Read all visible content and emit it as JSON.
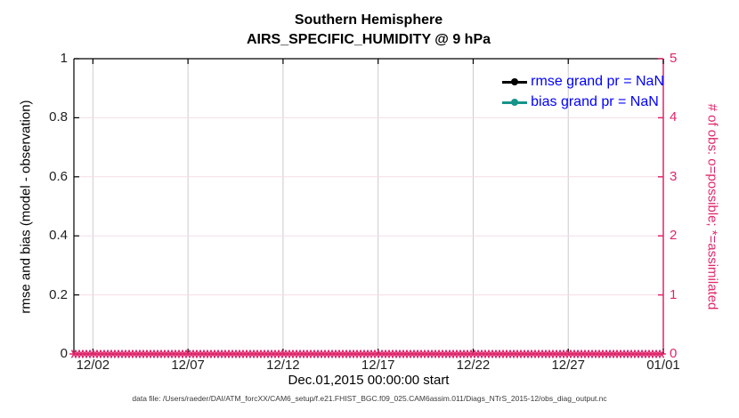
{
  "title": {
    "line1": "Southern Hemisphere",
    "line2": "AIRS_SPECIFIC_HUMIDITY @ 9 hPa"
  },
  "xaxis": {
    "label": "Dec.01,2015 00:00:00 start",
    "tick_labels": [
      "12/02",
      "12/07",
      "12/12",
      "12/17",
      "12/22",
      "12/27",
      "01/01"
    ],
    "tick_days": [
      1,
      6,
      11,
      16,
      21,
      26,
      31
    ],
    "range_days": [
      0,
      31
    ]
  },
  "yaxis_left": {
    "label": "rmse and bias (model - observation)",
    "tick_labels": [
      "0",
      "0.2",
      "0.4",
      "0.6",
      "0.8",
      "1"
    ],
    "tick_values": [
      0,
      0.2,
      0.4,
      0.6,
      0.8,
      1
    ],
    "range": [
      0,
      1
    ],
    "color": "#000000"
  },
  "yaxis_right": {
    "label": "# of obs: o=possible; *=assimilated",
    "tick_labels": [
      "0",
      "1",
      "2",
      "3",
      "4",
      "5"
    ],
    "tick_values": [
      0,
      1,
      2,
      3,
      4,
      5
    ],
    "range": [
      0,
      5
    ],
    "color": "#e0256b"
  },
  "legend": {
    "text_color": "#0000ff",
    "items": [
      {
        "label": "rmse grand pr = NaN",
        "color": "#000000",
        "marker": "filled-circle"
      },
      {
        "label": "bias grand pr = NaN",
        "color": "#16948a",
        "marker": "filled-circle"
      }
    ]
  },
  "footer": "data file: /Users/raeder/DAI/ATM_forcXX/CAM6_setup/f.e21.FHIST_BGC.f09_025.CAM6assim.011/Diags_NTrS_2015-12/obs_diag_output.nc",
  "colors": {
    "obs_pink": "#e0256b",
    "grid_vertical": "#cccccc",
    "grid_horizontal": "#f6dbe7",
    "axis_black": "#000000",
    "tick_text": "#1f1f1f"
  },
  "chart_data": {
    "type": "line",
    "title": "Southern Hemisphere",
    "subtitle": "AIRS_SPECIFIC_HUMIDITY @ 9 hPa",
    "xlabel": "Dec.01,2015 00:00:00 start",
    "x_tick_labels": [
      "12/02",
      "12/07",
      "12/12",
      "12/17",
      "12/22",
      "12/27",
      "01/01"
    ],
    "x_range_days_from_dec01": [
      0,
      31
    ],
    "ylabel_left": "rmse and bias (model - observation)",
    "ylim_left": [
      0,
      1
    ],
    "ylabel_right": "# of obs: o=possible; *=assimilated",
    "ylim_right": [
      0,
      5
    ],
    "grid": true,
    "legend_position": "top-right-inside",
    "series": [
      {
        "name": "rmse grand pr = NaN",
        "axis": "left",
        "color": "#000000",
        "marker": "filled-circle",
        "values": "NaN (nothing plotted)"
      },
      {
        "name": "bias grand pr = NaN",
        "axis": "left",
        "color": "#16948a",
        "marker": "filled-circle",
        "values": "NaN (nothing plotted)"
      },
      {
        "name": "# of obs possible (o)",
        "axis": "right",
        "color": "#e0256b",
        "marker": "o",
        "value_constant": 0,
        "note": "0 at every time step Dec 01 2015 through Jan 01 2016"
      },
      {
        "name": "# of obs assimilated (*)",
        "axis": "right",
        "color": "#e0256b",
        "marker": "*",
        "value_constant": 0,
        "note": "0 at every time step; dense * markers form bumpy pink band along y=0"
      }
    ]
  }
}
